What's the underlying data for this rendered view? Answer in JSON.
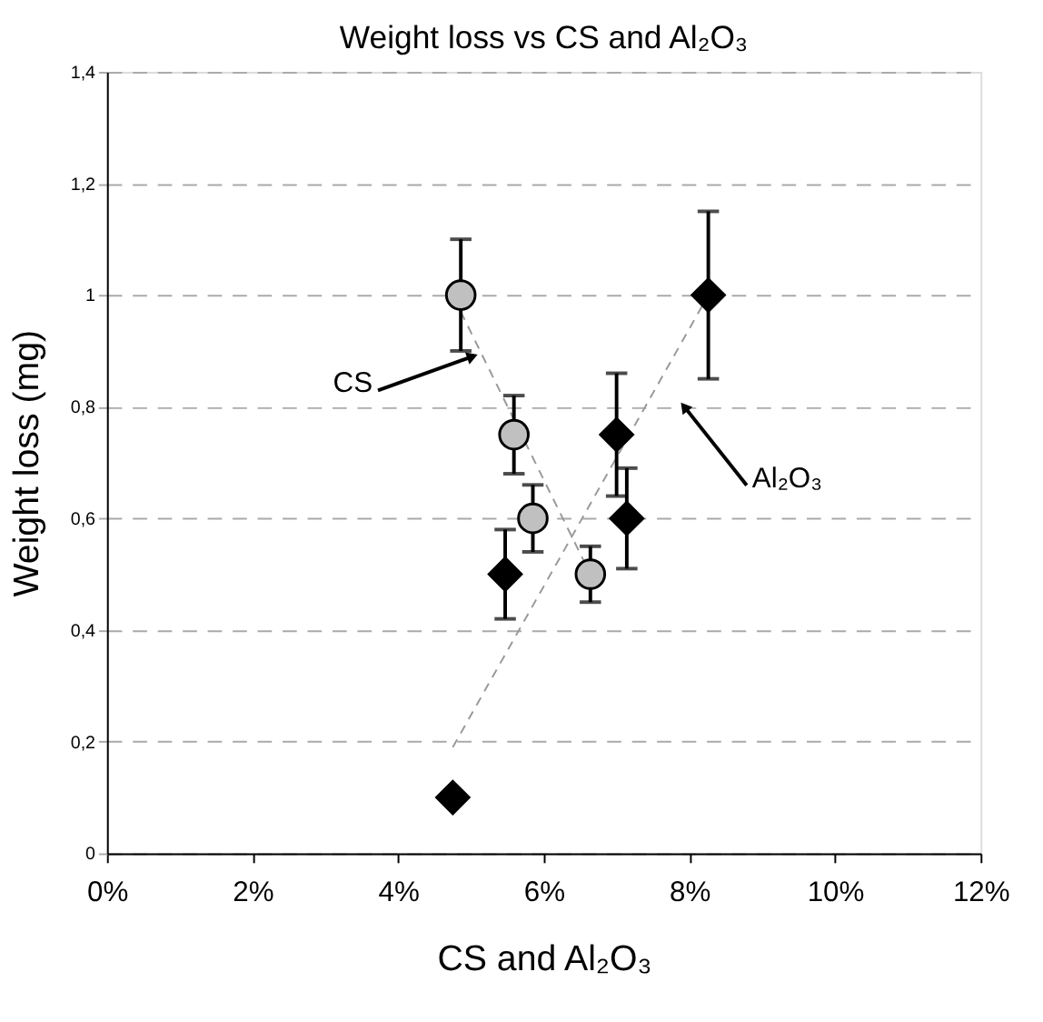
{
  "chart_data": {
    "type": "scatter",
    "title": "Weight loss vs CS and Al₂O₃",
    "xlabel": "CS and Al₂O₃",
    "ylabel": "Weight loss (mg)",
    "series": [
      {
        "type": "line",
        "x": [
          4.86,
          6.64
        ],
        "values": [
          0.97,
          0.5
        ],
        "color": "#999999",
        "marker": "none",
        "line_style": "dashed"
      },
      {
        "type": "line",
        "x": [
          4.75,
          8.26
        ],
        "values": [
          0.19,
          1.0
        ],
        "color": "#999999",
        "marker": "none",
        "line_style": "dashed"
      },
      {
        "x": [
          4.86,
          5.59,
          5.85,
          6.64
        ],
        "values": [
          1.0,
          0.75,
          0.6,
          0.5
        ],
        "errors": [
          0.1,
          0.07,
          0.06,
          0.05
        ],
        "color": "#c0c0c0",
        "marker": "circle"
      },
      {
        "x": [
          4.75,
          5.47,
          7.0,
          7.14,
          8.26
        ],
        "values": [
          0.1,
          0.5,
          0.75,
          0.6,
          1.0
        ],
        "errors": [
          null,
          0.08,
          0.11,
          0.09,
          0.15
        ],
        "color": "#000000",
        "marker": "diamond"
      }
    ],
    "annotations": [
      {
        "text": "CS",
        "x": 5.02,
        "y": 0.89
      },
      {
        "text": "Al₂O₃",
        "x": 7.93,
        "y": 0.8
      }
    ],
    "xlim": [
      0,
      12
    ],
    "xticks": [
      {
        "value": 0,
        "label": "0%"
      },
      {
        "value": 2,
        "label": "2%"
      },
      {
        "value": 4,
        "label": "4%"
      },
      {
        "value": 6,
        "label": "6%"
      },
      {
        "value": 8,
        "label": "8%"
      },
      {
        "value": 10,
        "label": "10%"
      },
      {
        "value": 12,
        "label": "12%"
      }
    ],
    "ylim": [
      0,
      1.4
    ],
    "yticks": [
      0,
      {
        "value": 0.2,
        "label": "0,2"
      },
      {
        "value": 0.4,
        "label": "0,4"
      },
      {
        "value": 0.6,
        "label": "0,6"
      },
      {
        "value": 0.8,
        "label": "0,8"
      },
      1,
      {
        "value": 1.2,
        "label": "1,2"
      },
      {
        "value": 1.4,
        "label": "1,4"
      }
    ],
    "grid": "y"
  }
}
